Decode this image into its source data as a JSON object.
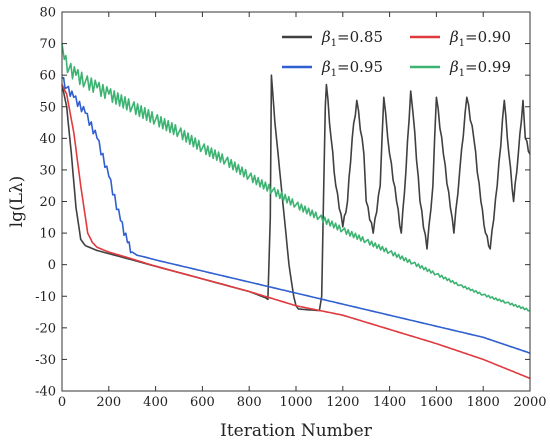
{
  "chart_data": {
    "type": "line",
    "xlabel": "Iteration Number",
    "ylabel": "lg(Lλ)",
    "xlim": [
      0,
      2000
    ],
    "ylim": [
      -40,
      80
    ],
    "xticks": [
      0,
      200,
      400,
      600,
      800,
      1000,
      1200,
      1400,
      1600,
      1800,
      2000
    ],
    "yticks": [
      -40,
      -30,
      -20,
      -10,
      0,
      10,
      20,
      30,
      40,
      50,
      60,
      70,
      80
    ],
    "grid": false,
    "legend_placement": "top-right",
    "series": [
      {
        "name": "β1=0.85",
        "symbol": "β",
        "subscript": "1",
        "value_text": "=0.85",
        "color": "#404040",
        "x": [
          0,
          20,
          40,
          60,
          80,
          100,
          150,
          200,
          300,
          400,
          500,
          600,
          700,
          800,
          870,
          880,
          890,
          895,
          910,
          930,
          950,
          970,
          990,
          1000,
          1010,
          1050,
          1100,
          1110,
          1125,
          1130,
          1150,
          1170,
          1200,
          1220,
          1240,
          1260,
          1290,
          1300,
          1330,
          1360,
          1375,
          1400,
          1430,
          1450,
          1470,
          1490,
          1500,
          1530,
          1560,
          1585,
          1600,
          1630,
          1660,
          1675,
          1700,
          1730,
          1760,
          1790,
          1810,
          1830,
          1860,
          1890,
          1910,
          1930,
          1950,
          1970,
          1980,
          2000
        ],
        "y": [
          57,
          50,
          35,
          18,
          8,
          6,
          4.5,
          3.5,
          1.5,
          -0.5,
          -2.5,
          -4.5,
          -6.5,
          -8.5,
          -10.5,
          -11,
          15,
          60,
          45,
          30,
          15,
          0,
          -10,
          -13,
          -14,
          -14.3,
          -14.5,
          -10,
          50,
          57,
          40,
          25,
          12,
          20,
          40,
          52,
          35,
          20,
          10,
          25,
          53,
          35,
          20,
          10,
          30,
          55,
          48,
          20,
          5,
          25,
          53,
          35,
          18,
          10,
          30,
          53,
          40,
          20,
          10,
          5,
          25,
          52,
          35,
          20,
          35,
          52,
          40,
          35
        ]
      },
      {
        "name": "β1=0.90",
        "symbol": "β",
        "subscript": "1",
        "value_text": "=0.90",
        "color": "#e03a3e",
        "x": [
          0,
          20,
          50,
          80,
          110,
          130,
          150,
          200,
          300,
          400,
          600,
          800,
          1000,
          1200,
          1400,
          1600,
          1800,
          2000
        ],
        "y": [
          57,
          54,
          42,
          25,
          10,
          7,
          5.5,
          4,
          1.8,
          -0.5,
          -4.5,
          -8.5,
          -13,
          -16,
          -20.5,
          -25,
          -30,
          -36
        ]
      },
      {
        "name": "β1=0.95",
        "symbol": "β",
        "subscript": "1",
        "value_text": "=0.95",
        "color": "#2f5fd0",
        "x": [
          0,
          20,
          50,
          100,
          150,
          200,
          250,
          280,
          300,
          320,
          350,
          400,
          600,
          800,
          1000,
          1200,
          1400,
          1600,
          1800,
          2000
        ],
        "y": [
          59,
          56,
          53,
          48,
          40,
          28,
          14,
          7,
          4,
          3,
          2.5,
          1.5,
          -2,
          -5.5,
          -9,
          -12.5,
          -16,
          -19.5,
          -23,
          -28
        ]
      },
      {
        "name": "β1=0.99",
        "symbol": "β",
        "subscript": "1",
        "value_text": "=0.99",
        "color": "#3cb371",
        "x": [
          0,
          10,
          30,
          60,
          100,
          150,
          200,
          300,
          400,
          500,
          600,
          700,
          800,
          900,
          1000,
          1100,
          1200,
          1300,
          1400,
          1500,
          1600,
          1700,
          1800,
          1900,
          2000
        ],
        "y": [
          70,
          65,
          62,
          60,
          58,
          56,
          54,
          50,
          46,
          42,
          37,
          33,
          28,
          23.5,
          19,
          15,
          11,
          7.5,
          4,
          0.5,
          -3,
          -6.5,
          -9.5,
          -12,
          -14.5
        ]
      }
    ]
  }
}
